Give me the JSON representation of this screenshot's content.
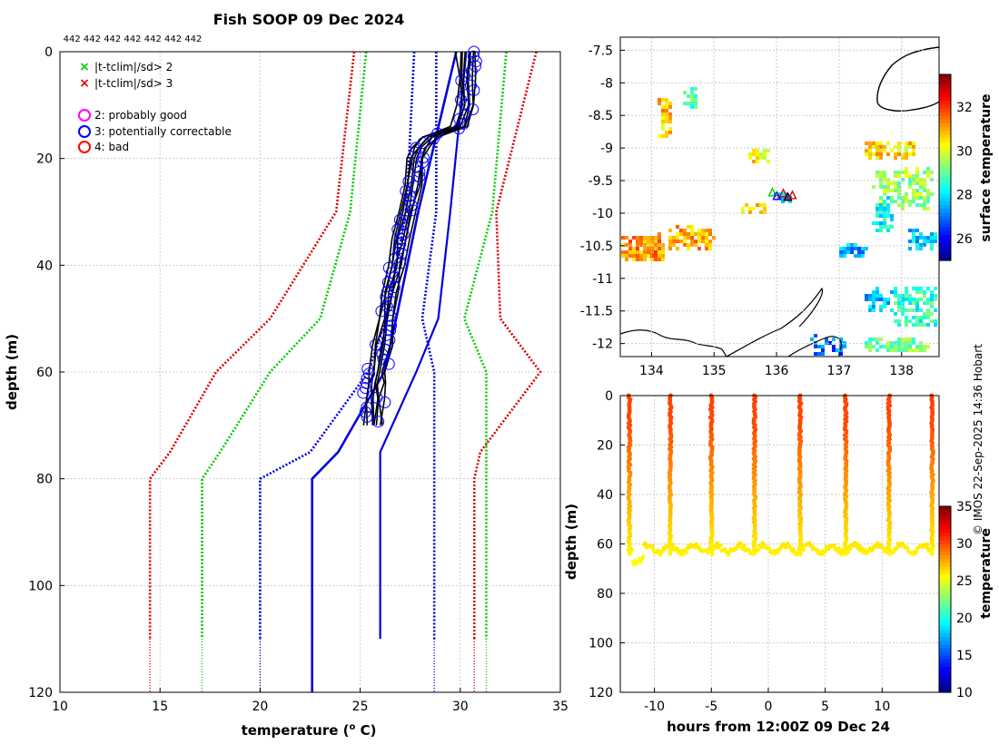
{
  "title": "Fish SOOP 09 Dec 2024",
  "credit": "© IMOS 22-Sep-2025 14:36 Hobart",
  "colors": {
    "clim_mean": "#0000dd",
    "sd1": "#0000dd",
    "sd2": "#00cc00",
    "sd3": "#dd0000",
    "profile_line": "#000000",
    "flag_circle": "#0000ff"
  },
  "chart_data": [
    {
      "type": "line",
      "id": "profile",
      "title": "Fish SOOP 09 Dec 2024",
      "xlabel": "temperature (",
      "xlabel_sup": "o",
      "xlabel_tail": " C)",
      "ylabel": "depth (m)",
      "xlim": [
        10,
        35
      ],
      "ylim": [
        0,
        120
      ],
      "xticks": [
        10,
        15,
        20,
        25,
        30,
        35
      ],
      "yticks": [
        0,
        20,
        40,
        60,
        80,
        100,
        120
      ],
      "id_labels": [
        "442",
        "442",
        "442",
        "442",
        "442",
        "442",
        "442"
      ],
      "legend": {
        "position": "top-left",
        "entries": [
          {
            "symbol": "x",
            "color": "#00cc00",
            "label": "|t-tclim|/sd> 2"
          },
          {
            "symbol": "x",
            "color": "#dd0000",
            "label": "|t-tclim|/sd> 3"
          },
          {
            "symbol": "o",
            "color": "#ff00ff",
            "label": "2: probably good"
          },
          {
            "symbol": "o",
            "color": "#0000ff",
            "label": "3: potentially correctable"
          },
          {
            "symbol": "o",
            "color": "#ff0000",
            "label": "4: bad"
          }
        ]
      },
      "climatology": {
        "depth": [
          0,
          30,
          50,
          60,
          75,
          80,
          110
        ],
        "mean": [
          29.8,
          27.9,
          26.8,
          26.2,
          23.9,
          22.6,
          22.6
        ],
        "alt_mean": [
          30.3,
          29.5,
          28.9,
          27.8,
          26.0,
          26.0,
          26.0
        ],
        "sd1_lower": [
          27.7,
          27.3,
          26.3,
          25.4,
          22.5,
          20.0,
          20.0
        ],
        "sd1_upper": [
          28.8,
          28.8,
          28.1,
          28.7,
          28.7,
          28.7,
          28.7
        ],
        "sd2_lower": [
          25.3,
          24.5,
          23.0,
          20.5,
          18.0,
          17.1,
          17.1
        ],
        "sd2_upper": [
          32.3,
          31.6,
          30.2,
          31.3,
          31.3,
          31.3,
          31.3
        ],
        "sd3_lower": [
          24.7,
          23.8,
          20.5,
          17.8,
          15.5,
          14.5,
          14.5
        ],
        "sd3_upper": [
          33.8,
          31.8,
          32.0,
          34.0,
          31.0,
          30.7,
          30.7
        ],
        "dotted_extension_depth": 120
      },
      "observed": {
        "depth": [
          0,
          5,
          10,
          14,
          16,
          18,
          20,
          25,
          30,
          35,
          40,
          45,
          50,
          55,
          60,
          62,
          65,
          70
        ],
        "temperature": [
          30.3,
          30.3,
          30.3,
          30.0,
          28.5,
          28.0,
          27.8,
          27.6,
          27.3,
          27.0,
          26.8,
          26.5,
          26.3,
          26.1,
          25.9,
          25.8,
          25.7,
          25.7
        ]
      }
    },
    {
      "type": "heatmap",
      "id": "map",
      "xlim": [
        133.5,
        138.6
      ],
      "ylim": [
        -12.2,
        -7.3
      ],
      "xticks": [
        134,
        135,
        136,
        137,
        138
      ],
      "yticks": [
        -7.5,
        -8,
        -8.5,
        -9,
        -9.5,
        -10,
        -10.5,
        -11,
        -11.5,
        -12
      ],
      "colorbar": {
        "label": "surface temperature",
        "range": [
          25,
          33.5
        ],
        "ticks": [
          26,
          28,
          30,
          32
        ]
      },
      "track_position": {
        "lon": 136.05,
        "lat": -9.72
      }
    },
    {
      "type": "scatter",
      "id": "section",
      "xlabel": "hours from 12:00Z 09 Dec 24",
      "ylabel": "depth (m)",
      "xlim": [
        -13,
        15
      ],
      "ylim": [
        0,
        120
      ],
      "xticks": [
        -10,
        -5,
        0,
        5,
        10
      ],
      "yticks": [
        0,
        20,
        40,
        60,
        80,
        100,
        120
      ],
      "colorbar": {
        "label": "temperature",
        "range": [
          10,
          35
        ],
        "ticks": [
          10,
          15,
          20,
          25,
          30,
          35
        ]
      },
      "casts_hours": [
        -12.2,
        -8.6,
        -5.0,
        -1.2,
        2.8,
        6.8,
        10.6,
        14.4
      ],
      "bottom_depth_m": 62
    }
  ]
}
